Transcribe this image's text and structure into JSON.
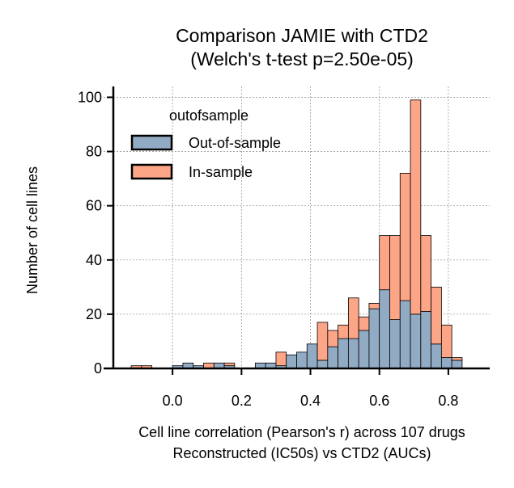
{
  "chart_data": {
    "type": "bar",
    "title_line1": "Comparison JAMIE with CTD2",
    "title_line2": "(Welch's t-test p=2.50e-05)",
    "xlabel_line1": "Cell line correlation (Pearson's r) across 107 drugs",
    "xlabel_line2": "Reconstructed (IC50s) vs CTD2 (AUCs)",
    "ylabel": "Number of cell lines",
    "xlim": [
      -0.2,
      0.92
    ],
    "ylim": [
      0,
      104
    ],
    "xticks": [
      0.0,
      0.2,
      0.4,
      0.6,
      0.8
    ],
    "xtick_labels": [
      "0.0",
      "0.2",
      "0.4",
      "0.6",
      "0.8"
    ],
    "yticks": [
      0,
      20,
      40,
      60,
      80,
      100
    ],
    "ytick_labels": [
      "0",
      "20",
      "40",
      "60",
      "80",
      "100"
    ],
    "grid": true,
    "legend_title": "outofsample",
    "legend_placement": "upper-left",
    "bin_start": -0.12,
    "bin_width": 0.03,
    "stacking": "in-sample stacked on top of out-of-sample",
    "series": [
      {
        "name": "Out-of-sample",
        "color": "#92abc5",
        "values": [
          0,
          0,
          0,
          0,
          1,
          2,
          1,
          0,
          2,
          1,
          0,
          0,
          2,
          2,
          1,
          5,
          6,
          9,
          3,
          8,
          11,
          11,
          14,
          22,
          29,
          18,
          25,
          20,
          21,
          9,
          4,
          3
        ]
      },
      {
        "name": "In-sample",
        "color": "#fda587",
        "values": [
          1,
          1,
          0,
          0,
          0,
          0,
          0,
          2,
          0,
          1,
          0,
          0,
          0,
          0,
          5,
          0,
          0,
          0,
          14,
          6,
          5,
          15,
          5,
          2,
          20,
          31,
          47,
          79,
          28,
          21,
          12,
          1
        ]
      }
    ]
  }
}
